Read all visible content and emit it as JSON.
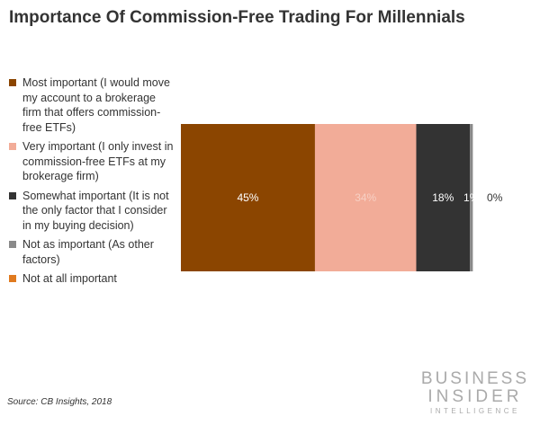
{
  "chart_data": {
    "type": "bar",
    "orientation": "horizontal-stacked",
    "title": "Importance Of Commission-Free Trading For Millennials",
    "series": [
      {
        "name": "Most important (I would move my account to a brokerage firm that offers commission-free ETFs)",
        "value": 45,
        "label": "45%",
        "color": "#8B4500"
      },
      {
        "name": "Very important (I only invest in commission-free ETFs at my brokerage firm)",
        "value": 34,
        "label": "34%",
        "color": "#F2AC98"
      },
      {
        "name": "Somewhat important (It is not the only factor that I consider in my buying decision)",
        "value": 18,
        "label": "18%",
        "color": "#333333"
      },
      {
        "name": "Not as important (As other factors)",
        "value": 1,
        "label": "1%",
        "color": "#8a8a8a"
      },
      {
        "name": "Not at all important",
        "value": 0,
        "label": "0%",
        "color": "#E07A1F"
      }
    ],
    "xlim": [
      0,
      100
    ],
    "grid": false,
    "legend": "left"
  },
  "source": "Source: CB Insights, 2018",
  "logo": {
    "line1": "BUSINESS",
    "line2": "INSIDER",
    "line3": "INTELLIGENCE"
  }
}
